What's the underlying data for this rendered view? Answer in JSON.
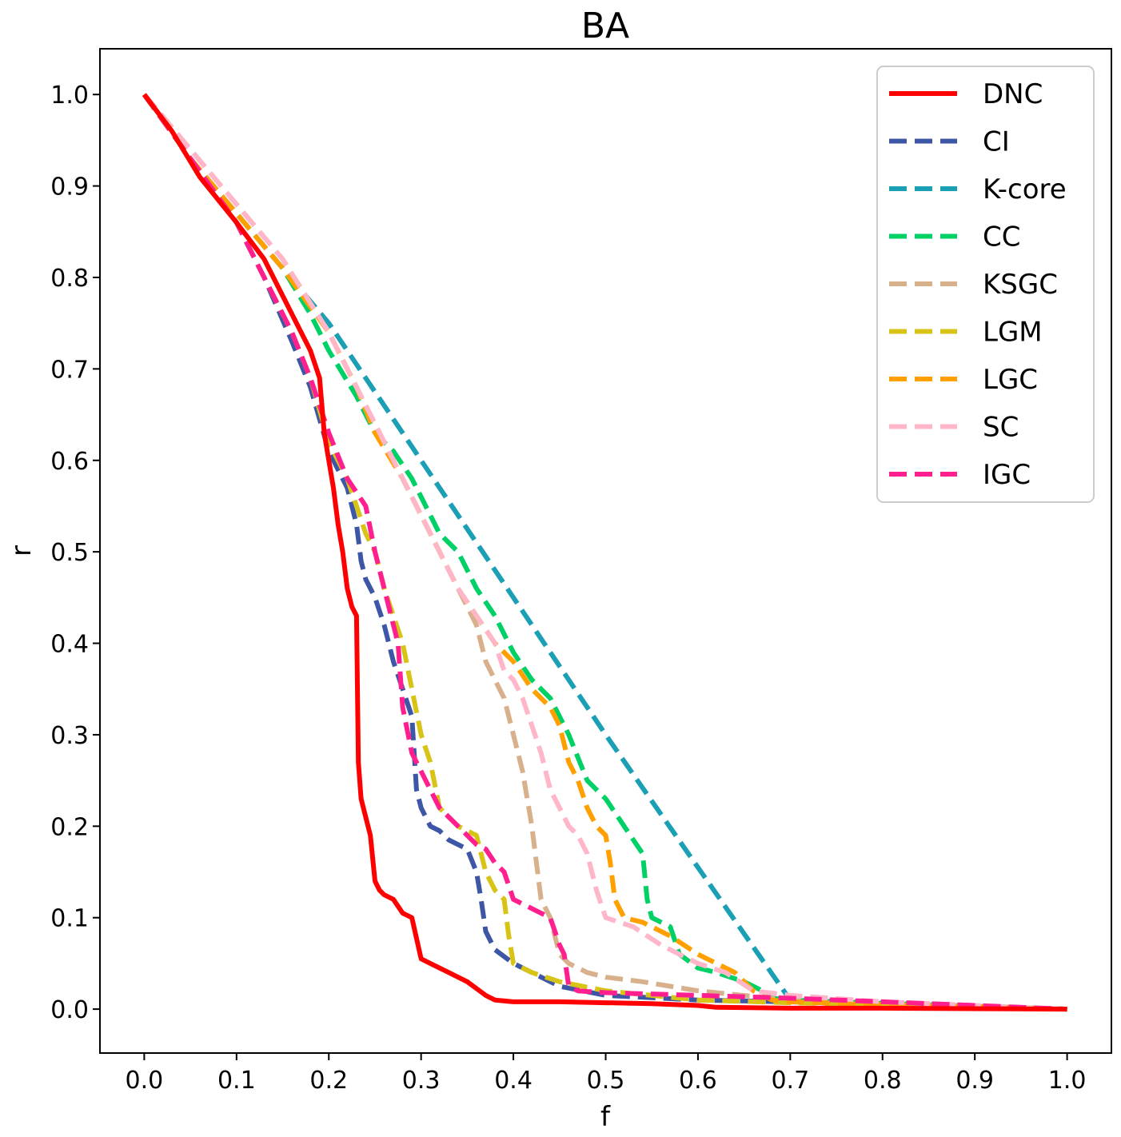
{
  "chart_data": {
    "type": "line",
    "title": "BA",
    "xlabel": "f",
    "ylabel": "r",
    "xlim": [
      -0.048,
      1.048
    ],
    "ylim": [
      -0.048,
      1.05
    ],
    "xticks": [
      "0.0",
      "0.1",
      "0.2",
      "0.3",
      "0.4",
      "0.5",
      "0.6",
      "0.7",
      "0.8",
      "0.9",
      "1.0"
    ],
    "yticks": [
      "0.0",
      "0.1",
      "0.2",
      "0.3",
      "0.4",
      "0.5",
      "0.6",
      "0.7",
      "0.8",
      "0.9",
      "1.0"
    ],
    "grid": false,
    "legend_position": "top-right",
    "series": [
      {
        "name": "DNC",
        "color": "#ff0000",
        "style": "solid",
        "x": [
          0,
          0.03,
          0.06,
          0.1,
          0.13,
          0.15,
          0.17,
          0.18,
          0.19,
          0.195,
          0.2,
          0.205,
          0.21,
          0.215,
          0.22,
          0.225,
          0.23,
          0.232,
          0.235,
          0.24,
          0.245,
          0.25,
          0.255,
          0.26,
          0.27,
          0.28,
          0.29,
          0.3,
          0.31,
          0.33,
          0.35,
          0.37,
          0.38,
          0.4,
          0.45,
          0.5,
          0.55,
          0.6,
          0.62,
          0.7,
          0.8,
          0.9,
          1.0
        ],
        "y": [
          1.0,
          0.96,
          0.91,
          0.86,
          0.82,
          0.78,
          0.74,
          0.72,
          0.69,
          0.63,
          0.6,
          0.57,
          0.53,
          0.5,
          0.46,
          0.44,
          0.43,
          0.27,
          0.23,
          0.21,
          0.19,
          0.14,
          0.13,
          0.125,
          0.12,
          0.105,
          0.1,
          0.055,
          0.05,
          0.04,
          0.03,
          0.015,
          0.01,
          0.008,
          0.008,
          0.007,
          0.006,
          0.004,
          0.002,
          0.001,
          0.001,
          0.0005,
          0.0
        ]
      },
      {
        "name": "CI",
        "color": "#3d56a6",
        "style": "dashed",
        "x": [
          0,
          0.05,
          0.1,
          0.13,
          0.16,
          0.18,
          0.2,
          0.22,
          0.23,
          0.235,
          0.24,
          0.245,
          0.25,
          0.26,
          0.27,
          0.28,
          0.29,
          0.295,
          0.3,
          0.31,
          0.32,
          0.33,
          0.35,
          0.36,
          0.365,
          0.37,
          0.38,
          0.4,
          0.42,
          0.45,
          0.5,
          0.6,
          0.7,
          0.8,
          0.9,
          1.0
        ],
        "y": [
          1.0,
          0.93,
          0.86,
          0.8,
          0.73,
          0.68,
          0.61,
          0.57,
          0.53,
          0.49,
          0.47,
          0.46,
          0.45,
          0.42,
          0.38,
          0.35,
          0.32,
          0.24,
          0.22,
          0.2,
          0.195,
          0.185,
          0.175,
          0.15,
          0.12,
          0.085,
          0.065,
          0.05,
          0.04,
          0.025,
          0.015,
          0.01,
          0.008,
          0.005,
          0.003,
          0.0
        ]
      },
      {
        "name": "K-core",
        "color": "#1a9fb5",
        "style": "dashed",
        "x": [
          0,
          0.05,
          0.1,
          0.15,
          0.2,
          0.3,
          0.5,
          0.7,
          1.0
        ],
        "y": [
          1.0,
          0.93,
          0.87,
          0.81,
          0.75,
          0.6,
          0.3,
          0.01,
          0.0
        ]
      },
      {
        "name": "CC",
        "color": "#00d166",
        "style": "dashed",
        "x": [
          0,
          0.05,
          0.1,
          0.15,
          0.18,
          0.2,
          0.23,
          0.25,
          0.27,
          0.29,
          0.3,
          0.32,
          0.34,
          0.36,
          0.38,
          0.39,
          0.4,
          0.42,
          0.44,
          0.46,
          0.48,
          0.5,
          0.52,
          0.54,
          0.545,
          0.55,
          0.57,
          0.58,
          0.6,
          0.62,
          0.65,
          0.67,
          0.68,
          0.7,
          0.8,
          0.9,
          1.0
        ],
        "y": [
          1.0,
          0.93,
          0.87,
          0.81,
          0.76,
          0.72,
          0.67,
          0.63,
          0.61,
          0.58,
          0.56,
          0.52,
          0.5,
          0.46,
          0.43,
          0.41,
          0.39,
          0.36,
          0.34,
          0.3,
          0.25,
          0.23,
          0.2,
          0.17,
          0.12,
          0.1,
          0.09,
          0.06,
          0.045,
          0.04,
          0.03,
          0.02,
          0.012,
          0.01,
          0.006,
          0.003,
          0.0
        ]
      },
      {
        "name": "KSGC",
        "color": "#d9b08c",
        "style": "dashed",
        "x": [
          0,
          0.05,
          0.1,
          0.15,
          0.2,
          0.23,
          0.25,
          0.27,
          0.3,
          0.32,
          0.34,
          0.36,
          0.37,
          0.38,
          0.39,
          0.4,
          0.41,
          0.42,
          0.425,
          0.43,
          0.44,
          0.445,
          0.45,
          0.46,
          0.48,
          0.5,
          0.54,
          0.6,
          0.7,
          0.8,
          0.9,
          1.0
        ],
        "y": [
          1.0,
          0.94,
          0.88,
          0.82,
          0.74,
          0.68,
          0.64,
          0.6,
          0.54,
          0.5,
          0.46,
          0.42,
          0.38,
          0.36,
          0.34,
          0.3,
          0.26,
          0.2,
          0.16,
          0.12,
          0.1,
          0.08,
          0.06,
          0.05,
          0.04,
          0.035,
          0.03,
          0.02,
          0.01,
          0.005,
          0.003,
          0.0
        ]
      },
      {
        "name": "LGM",
        "color": "#d8c416",
        "style": "dashed",
        "x": [
          0,
          0.05,
          0.1,
          0.13,
          0.16,
          0.18,
          0.2,
          0.22,
          0.23,
          0.24,
          0.25,
          0.26,
          0.27,
          0.28,
          0.29,
          0.3,
          0.31,
          0.32,
          0.34,
          0.36,
          0.37,
          0.38,
          0.39,
          0.395,
          0.4,
          0.42,
          0.45,
          0.5,
          0.6,
          0.7,
          0.8,
          0.9,
          1.0
        ],
        "y": [
          1.0,
          0.93,
          0.86,
          0.8,
          0.74,
          0.69,
          0.62,
          0.58,
          0.55,
          0.52,
          0.5,
          0.46,
          0.43,
          0.4,
          0.35,
          0.3,
          0.27,
          0.22,
          0.2,
          0.19,
          0.15,
          0.13,
          0.12,
          0.08,
          0.05,
          0.04,
          0.03,
          0.02,
          0.01,
          0.007,
          0.005,
          0.003,
          0.0
        ]
      },
      {
        "name": "LGC",
        "color": "#ff9f00",
        "style": "dashed",
        "x": [
          0,
          0.05,
          0.1,
          0.15,
          0.2,
          0.23,
          0.25,
          0.28,
          0.3,
          0.32,
          0.34,
          0.36,
          0.38,
          0.4,
          0.42,
          0.44,
          0.45,
          0.46,
          0.47,
          0.48,
          0.49,
          0.5,
          0.505,
          0.51,
          0.52,
          0.54,
          0.55,
          0.57,
          0.6,
          0.62,
          0.64,
          0.66,
          0.68,
          0.7,
          0.8,
          0.9,
          1.0
        ],
        "y": [
          1.0,
          0.93,
          0.87,
          0.81,
          0.74,
          0.68,
          0.63,
          0.58,
          0.54,
          0.5,
          0.46,
          0.43,
          0.4,
          0.38,
          0.35,
          0.33,
          0.31,
          0.27,
          0.25,
          0.22,
          0.2,
          0.19,
          0.16,
          0.12,
          0.1,
          0.095,
          0.09,
          0.08,
          0.06,
          0.05,
          0.04,
          0.02,
          0.01,
          0.008,
          0.005,
          0.003,
          0.0
        ]
      },
      {
        "name": "SC",
        "color": "#ffb6c8",
        "style": "dashed",
        "x": [
          0,
          0.05,
          0.1,
          0.15,
          0.2,
          0.23,
          0.25,
          0.28,
          0.3,
          0.32,
          0.34,
          0.36,
          0.38,
          0.39,
          0.4,
          0.41,
          0.42,
          0.43,
          0.44,
          0.45,
          0.46,
          0.47,
          0.48,
          0.49,
          0.5,
          0.53,
          0.56,
          0.58,
          0.6,
          0.63,
          0.66,
          0.7,
          0.8,
          0.9,
          1.0
        ],
        "y": [
          1.0,
          0.94,
          0.88,
          0.82,
          0.74,
          0.68,
          0.64,
          0.58,
          0.54,
          0.5,
          0.46,
          0.43,
          0.4,
          0.37,
          0.36,
          0.34,
          0.31,
          0.28,
          0.24,
          0.22,
          0.2,
          0.19,
          0.17,
          0.13,
          0.1,
          0.09,
          0.07,
          0.06,
          0.05,
          0.04,
          0.02,
          0.015,
          0.008,
          0.004,
          0.0
        ]
      },
      {
        "name": "IGC",
        "color": "#ff1f8f",
        "style": "dashed",
        "x": [
          0,
          0.05,
          0.1,
          0.13,
          0.16,
          0.18,
          0.2,
          0.22,
          0.24,
          0.25,
          0.26,
          0.27,
          0.275,
          0.28,
          0.29,
          0.3,
          0.31,
          0.32,
          0.34,
          0.36,
          0.37,
          0.38,
          0.39,
          0.4,
          0.42,
          0.44,
          0.45,
          0.455,
          0.46,
          0.47,
          0.5,
          0.6,
          0.7,
          0.8,
          0.9,
          1.0
        ],
        "y": [
          1.0,
          0.93,
          0.86,
          0.8,
          0.74,
          0.69,
          0.63,
          0.58,
          0.55,
          0.5,
          0.46,
          0.42,
          0.4,
          0.33,
          0.28,
          0.26,
          0.24,
          0.22,
          0.2,
          0.18,
          0.175,
          0.16,
          0.15,
          0.12,
          0.11,
          0.1,
          0.07,
          0.06,
          0.025,
          0.02,
          0.018,
          0.015,
          0.012,
          0.008,
          0.004,
          0.0
        ]
      }
    ]
  }
}
